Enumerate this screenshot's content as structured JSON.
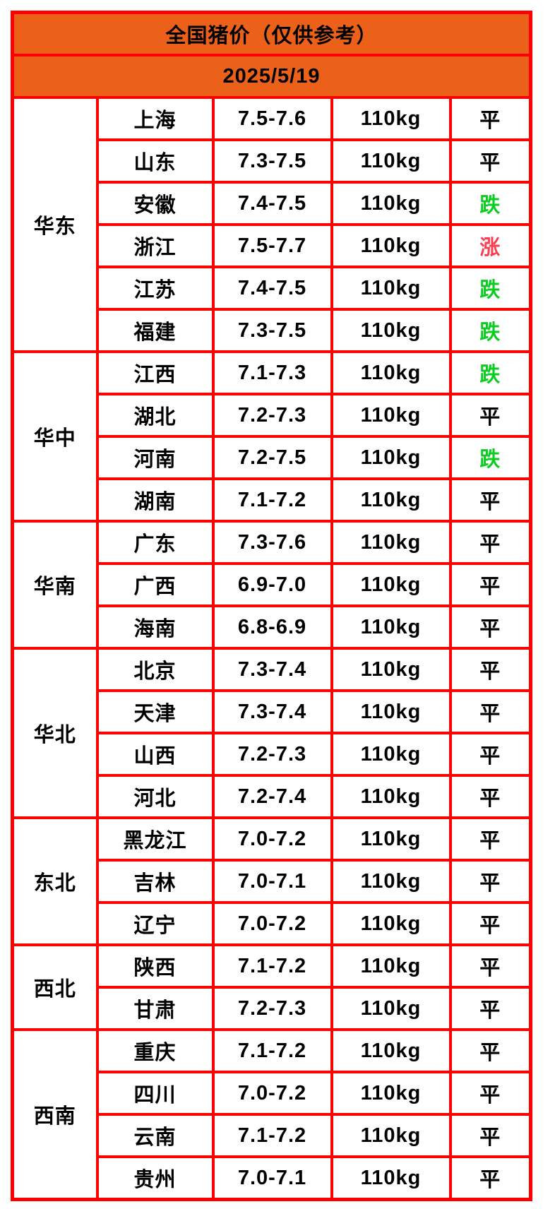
{
  "title": "全国猪价（仅供参考）",
  "date": "2025/5/19",
  "colors": {
    "header_bg": "#ec6119",
    "grid_border": "#ff0000",
    "trend_flat": "#000000",
    "trend_down": "#0bcc20",
    "trend_up": "#fa3c50",
    "text": "#000000",
    "cell_bg": "#ffffff"
  },
  "trend_labels": {
    "flat": "平",
    "down": "跌",
    "up": "涨"
  },
  "regions": [
    {
      "name": "华东",
      "rows": [
        {
          "province": "上海",
          "price": "7.5-7.6",
          "weight": "110kg",
          "trend": "平",
          "trend_type": "flat"
        },
        {
          "province": "山东",
          "price": "7.3-7.5",
          "weight": "110kg",
          "trend": "平",
          "trend_type": "flat"
        },
        {
          "province": "安徽",
          "price": "7.4-7.5",
          "weight": "110kg",
          "trend": "跌",
          "trend_type": "down"
        },
        {
          "province": "浙江",
          "price": "7.5-7.7",
          "weight": "110kg",
          "trend": "涨",
          "trend_type": "up"
        },
        {
          "province": "江苏",
          "price": "7.4-7.5",
          "weight": "110kg",
          "trend": "跌",
          "trend_type": "down"
        },
        {
          "province": "福建",
          "price": "7.3-7.5",
          "weight": "110kg",
          "trend": "跌",
          "trend_type": "down"
        }
      ]
    },
    {
      "name": "华中",
      "rows": [
        {
          "province": "江西",
          "price": "7.1-7.3",
          "weight": "110kg",
          "trend": "跌",
          "trend_type": "down"
        },
        {
          "province": "湖北",
          "price": "7.2-7.3",
          "weight": "110kg",
          "trend": "平",
          "trend_type": "flat"
        },
        {
          "province": "河南",
          "price": "7.2-7.5",
          "weight": "110kg",
          "trend": "跌",
          "trend_type": "down"
        },
        {
          "province": "湖南",
          "price": "7.1-7.2",
          "weight": "110kg",
          "trend": "平",
          "trend_type": "flat"
        }
      ]
    },
    {
      "name": "华南",
      "rows": [
        {
          "province": "广东",
          "price": "7.3-7.6",
          "weight": "110kg",
          "trend": "平",
          "trend_type": "flat"
        },
        {
          "province": "广西",
          "price": "6.9-7.0",
          "weight": "110kg",
          "trend": "平",
          "trend_type": "flat"
        },
        {
          "province": "海南",
          "price": "6.8-6.9",
          "weight": "110kg",
          "trend": "平",
          "trend_type": "flat"
        }
      ]
    },
    {
      "name": "华北",
      "rows": [
        {
          "province": "北京",
          "price": "7.3-7.4",
          "weight": "110kg",
          "trend": "平",
          "trend_type": "flat"
        },
        {
          "province": "天津",
          "price": "7.3-7.4",
          "weight": "110kg",
          "trend": "平",
          "trend_type": "flat"
        },
        {
          "province": "山西",
          "price": "7.2-7.3",
          "weight": "110kg",
          "trend": "平",
          "trend_type": "flat"
        },
        {
          "province": "河北",
          "price": "7.2-7.4",
          "weight": "110kg",
          "trend": "平",
          "trend_type": "flat"
        }
      ]
    },
    {
      "name": "东北",
      "rows": [
        {
          "province": "黑龙江",
          "price": "7.0-7.2",
          "weight": "110kg",
          "trend": "平",
          "trend_type": "flat"
        },
        {
          "province": "吉林",
          "price": "7.0-7.1",
          "weight": "110kg",
          "trend": "平",
          "trend_type": "flat"
        },
        {
          "province": "辽宁",
          "price": "7.0-7.2",
          "weight": "110kg",
          "trend": "平",
          "trend_type": "flat"
        }
      ]
    },
    {
      "name": "西北",
      "rows": [
        {
          "province": "陕西",
          "price": "7.1-7.2",
          "weight": "110kg",
          "trend": "平",
          "trend_type": "flat"
        },
        {
          "province": "甘肃",
          "price": "7.2-7.3",
          "weight": "110kg",
          "trend": "平",
          "trend_type": "flat"
        }
      ]
    },
    {
      "name": "西南",
      "rows": [
        {
          "province": "重庆",
          "price": "7.1-7.2",
          "weight": "110kg",
          "trend": "平",
          "trend_type": "flat"
        },
        {
          "province": "四川",
          "price": "7.0-7.2",
          "weight": "110kg",
          "trend": "平",
          "trend_type": "flat"
        },
        {
          "province": "云南",
          "price": "7.1-7.2",
          "weight": "110kg",
          "trend": "平",
          "trend_type": "flat"
        },
        {
          "province": "贵州",
          "price": "7.0-7.1",
          "weight": "110kg",
          "trend": "平",
          "trend_type": "flat"
        }
      ]
    }
  ],
  "chart_data": {
    "type": "table",
    "title": "全国猪价（仅供参考）",
    "subtitle": "2025/5/19",
    "rows": [
      [
        "华东",
        "上海",
        "7.5-7.6",
        "110kg",
        "平"
      ],
      [
        "华东",
        "山东",
        "7.3-7.5",
        "110kg",
        "平"
      ],
      [
        "华东",
        "安徽",
        "7.4-7.5",
        "110kg",
        "跌"
      ],
      [
        "华东",
        "浙江",
        "7.5-7.7",
        "110kg",
        "涨"
      ],
      [
        "华东",
        "江苏",
        "7.4-7.5",
        "110kg",
        "跌"
      ],
      [
        "华东",
        "福建",
        "7.3-7.5",
        "110kg",
        "跌"
      ],
      [
        "华中",
        "江西",
        "7.1-7.3",
        "110kg",
        "跌"
      ],
      [
        "华中",
        "湖北",
        "7.2-7.3",
        "110kg",
        "平"
      ],
      [
        "华中",
        "河南",
        "7.2-7.5",
        "110kg",
        "跌"
      ],
      [
        "华中",
        "湖南",
        "7.1-7.2",
        "110kg",
        "平"
      ],
      [
        "华南",
        "广东",
        "7.3-7.6",
        "110kg",
        "平"
      ],
      [
        "华南",
        "广西",
        "6.9-7.0",
        "110kg",
        "平"
      ],
      [
        "华南",
        "海南",
        "6.8-6.9",
        "110kg",
        "平"
      ],
      [
        "华北",
        "北京",
        "7.3-7.4",
        "110kg",
        "平"
      ],
      [
        "华北",
        "天津",
        "7.3-7.4",
        "110kg",
        "平"
      ],
      [
        "华北",
        "山西",
        "7.2-7.3",
        "110kg",
        "平"
      ],
      [
        "华北",
        "河北",
        "7.2-7.4",
        "110kg",
        "平"
      ],
      [
        "东北",
        "黑龙江",
        "7.0-7.2",
        "110kg",
        "平"
      ],
      [
        "东北",
        "吉林",
        "7.0-7.1",
        "110kg",
        "平"
      ],
      [
        "东北",
        "辽宁",
        "7.0-7.2",
        "110kg",
        "平"
      ],
      [
        "西北",
        "陕西",
        "7.1-7.2",
        "110kg",
        "平"
      ],
      [
        "西北",
        "甘肃",
        "7.2-7.3",
        "110kg",
        "平"
      ],
      [
        "西南",
        "重庆",
        "7.1-7.2",
        "110kg",
        "平"
      ],
      [
        "西南",
        "四川",
        "7.0-7.2",
        "110kg",
        "平"
      ],
      [
        "西南",
        "云南",
        "7.1-7.2",
        "110kg",
        "平"
      ],
      [
        "西南",
        "贵州",
        "7.0-7.1",
        "110kg",
        "平"
      ]
    ]
  }
}
